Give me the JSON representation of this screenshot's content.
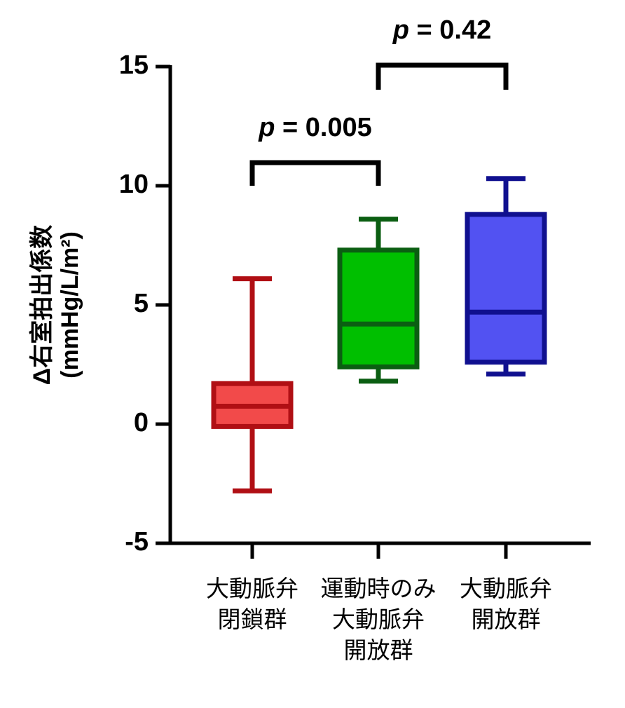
{
  "chart_data": {
    "type": "box",
    "y_label": "Δ右室拍出係数\n(mmHg/L/m²)",
    "categories": [
      "大動脈弁\n閉鎖群",
      "運動時のみ\n大動脈弁\n開放群",
      "大動脈弁\n開放群"
    ],
    "boxes": [
      {
        "whislo": -2.8,
        "q1": -0.1,
        "med": 0.75,
        "q3": 1.7,
        "whishi": 6.1,
        "color": "#f24a4a",
        "edge_color": "#b00f14"
      },
      {
        "whislo": 1.8,
        "q1": 2.4,
        "med": 4.2,
        "q3": 7.3,
        "whishi": 8.6,
        "color": "#00bf00",
        "edge_color": "#0b5e12"
      },
      {
        "whislo": 2.1,
        "q1": 2.6,
        "med": 4.7,
        "q3": 8.8,
        "whishi": 10.3,
        "color": "#5252f2",
        "edge_color": "#10108f"
      }
    ],
    "annotations": [
      {
        "text": "p = 0.005"
      },
      {
        "text": "p = 0.42"
      }
    ],
    "ylim": [
      -5,
      15
    ],
    "yticks": [
      -5,
      0,
      5,
      10,
      15
    ]
  }
}
